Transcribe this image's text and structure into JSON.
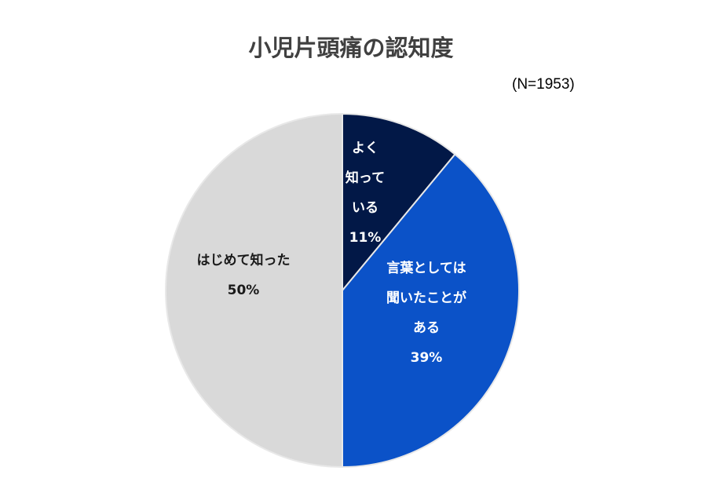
{
  "chart_data": {
    "type": "pie",
    "title": "小児片頭痛の認知度",
    "subtitle": "(N=1953)",
    "slices": [
      {
        "label": "よく知っている",
        "value": 11,
        "color": "#021847",
        "label_lines": [
          "よく",
          "知って",
          "いる",
          "11%"
        ]
      },
      {
        "label": "言葉としては聞いたことがある",
        "value": 39,
        "color": "#0b52c8",
        "label_lines": [
          "言葉としては",
          "聞いたことが",
          "ある",
          "39%"
        ]
      },
      {
        "label": "はじめて知った",
        "value": 50,
        "color": "#d9d9d9",
        "label_lines": [
          "はじめて知った",
          "50%"
        ]
      }
    ],
    "start_angle": "12 o'clock, clockwise",
    "legend": "none (data labels inside slices)"
  },
  "header": {
    "title": "小児片頭痛の認知度",
    "n_label": "(N=1953)"
  }
}
